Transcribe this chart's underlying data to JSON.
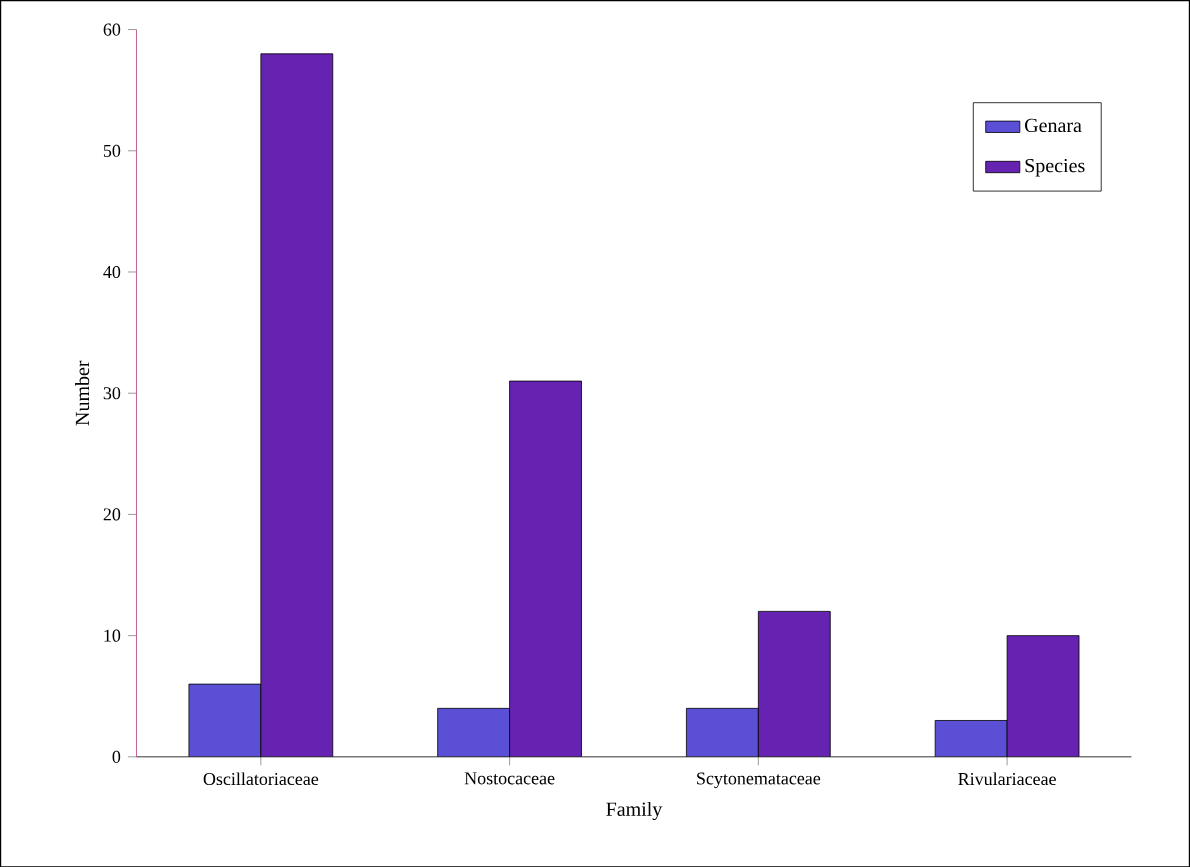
{
  "chart_data": {
    "type": "bar",
    "xlabel": "Family",
    "ylabel": "Number",
    "categories": [
      "Oscillatoriaceae",
      "Nostocaceae",
      "Scytonemataceae",
      "Rivulariaceae"
    ],
    "series": [
      {
        "name": "Genara",
        "color": "#5b4fd6",
        "values": [
          6,
          4,
          4,
          3
        ]
      },
      {
        "name": "Species",
        "color": "#6622b0",
        "values": [
          58,
          31,
          12,
          10
        ]
      }
    ],
    "ylim": [
      0,
      60
    ],
    "yticks": [
      0,
      10,
      20,
      30,
      40,
      50,
      60
    ],
    "legend": "top right"
  }
}
